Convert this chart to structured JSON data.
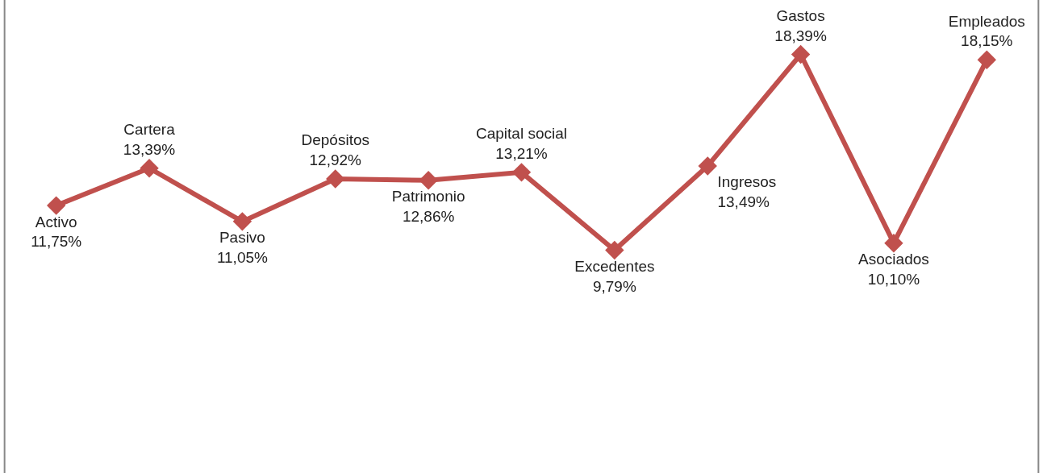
{
  "chart_data": {
    "type": "line",
    "categories": [
      "Activo",
      "Cartera",
      "Pasivo",
      "Depósitos",
      "Patrimonio",
      "Capital social",
      "Excedentes",
      "Ingresos",
      "Gastos",
      "Asociados",
      "Empleados"
    ],
    "series": [
      {
        "color": "#c0504d",
        "values": [
          11.75,
          13.39,
          11.05,
          12.92,
          12.86,
          13.21,
          9.79,
          13.49,
          18.39,
          10.1,
          18.15
        ],
        "value_labels": [
          "11,75%",
          "13,39%",
          "11,05%",
          "12,92%",
          "12,86%",
          "13,21%",
          "9,79%",
          "13,49%",
          "18,39%",
          "10,10%",
          "18,15%"
        ]
      }
    ],
    "marker": "diamond",
    "line_style": "solid",
    "legend": false,
    "tick_labels": false
  }
}
